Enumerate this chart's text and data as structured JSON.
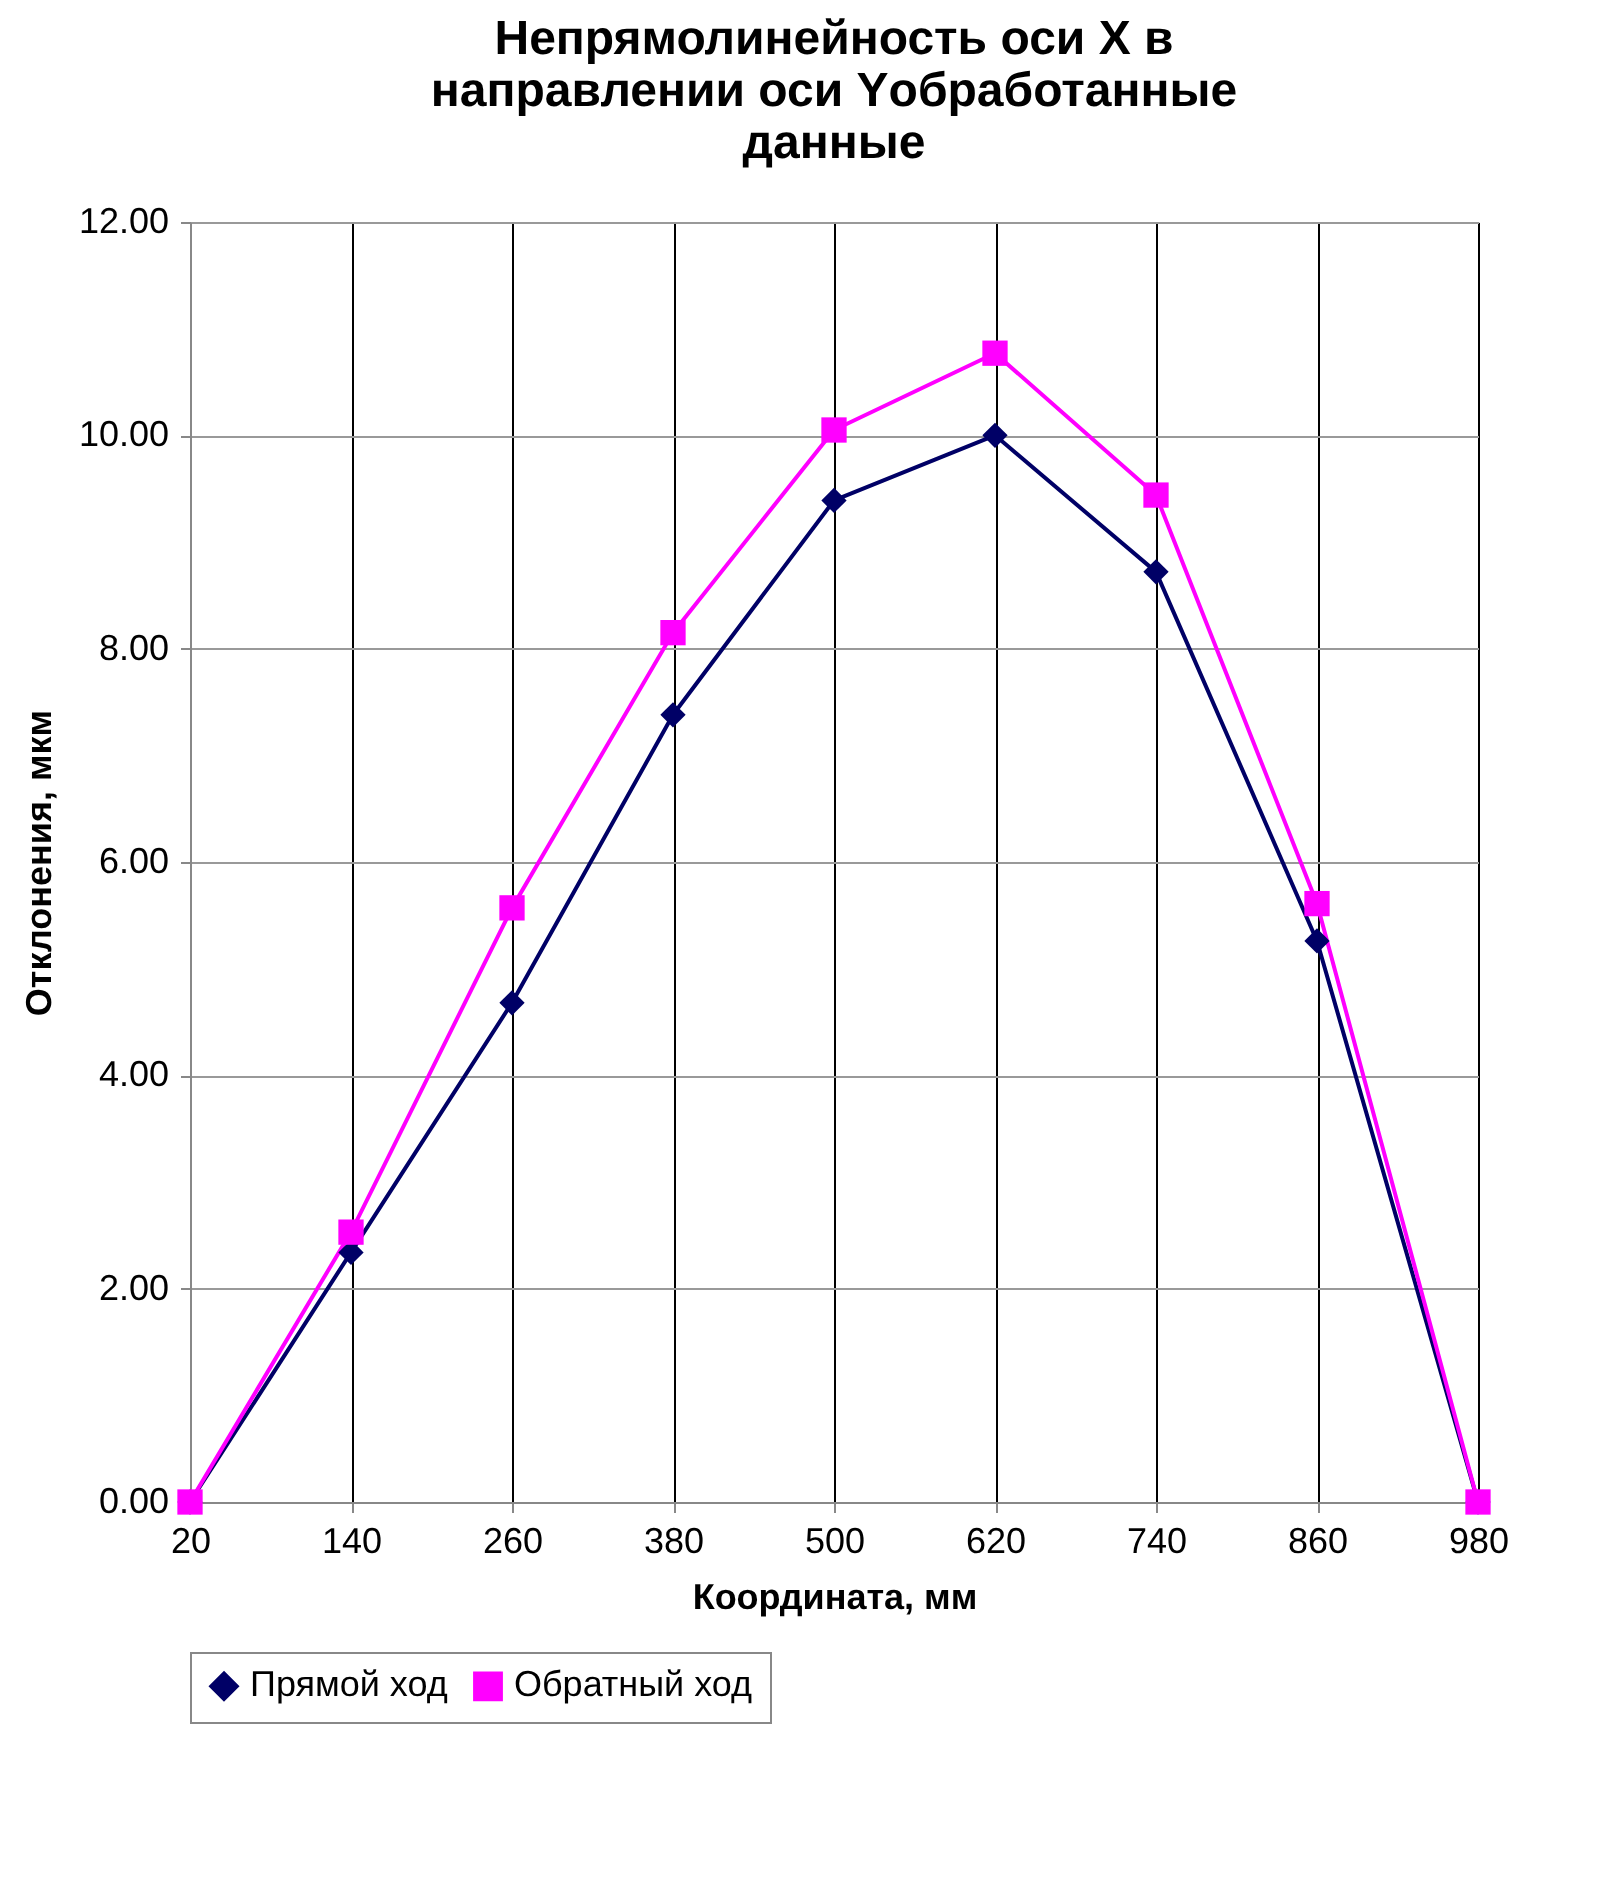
{
  "chart_data": {
    "type": "line",
    "title": "Непрямолинейность оси X в направлении оси Yобработанные данные",
    "xlabel": "Координата, мм",
    "ylabel": "Отклонения, мкм",
    "x": [
      20,
      140,
      260,
      380,
      500,
      620,
      740,
      860,
      980
    ],
    "xlim": [
      20,
      980
    ],
    "xticks": [
      20,
      140,
      260,
      380,
      500,
      620,
      740,
      860,
      980
    ],
    "ylim": [
      0,
      12
    ],
    "yticks": [
      {
        "value": 0,
        "label": "0.00"
      },
      {
        "value": 2,
        "label": "2.00"
      },
      {
        "value": 4,
        "label": "4.00"
      },
      {
        "value": 6,
        "label": "6.00"
      },
      {
        "value": 8,
        "label": "8.00"
      },
      {
        "value": 10,
        "label": "10.00"
      },
      {
        "value": 12,
        "label": "12.00"
      }
    ],
    "grid": true,
    "legend": "bottom",
    "series": [
      {
        "name": "Прямой ход",
        "color": "#000066",
        "marker": "diamond",
        "values": [
          0,
          2.34,
          4.68,
          7.38,
          9.39,
          10.0,
          8.72,
          5.26,
          0
        ]
      },
      {
        "name": "Обратный ход",
        "color": "#ff00ff",
        "marker": "square",
        "values": [
          0,
          2.53,
          5.57,
          8.15,
          10.05,
          10.77,
          9.44,
          5.61,
          0
        ]
      }
    ]
  }
}
